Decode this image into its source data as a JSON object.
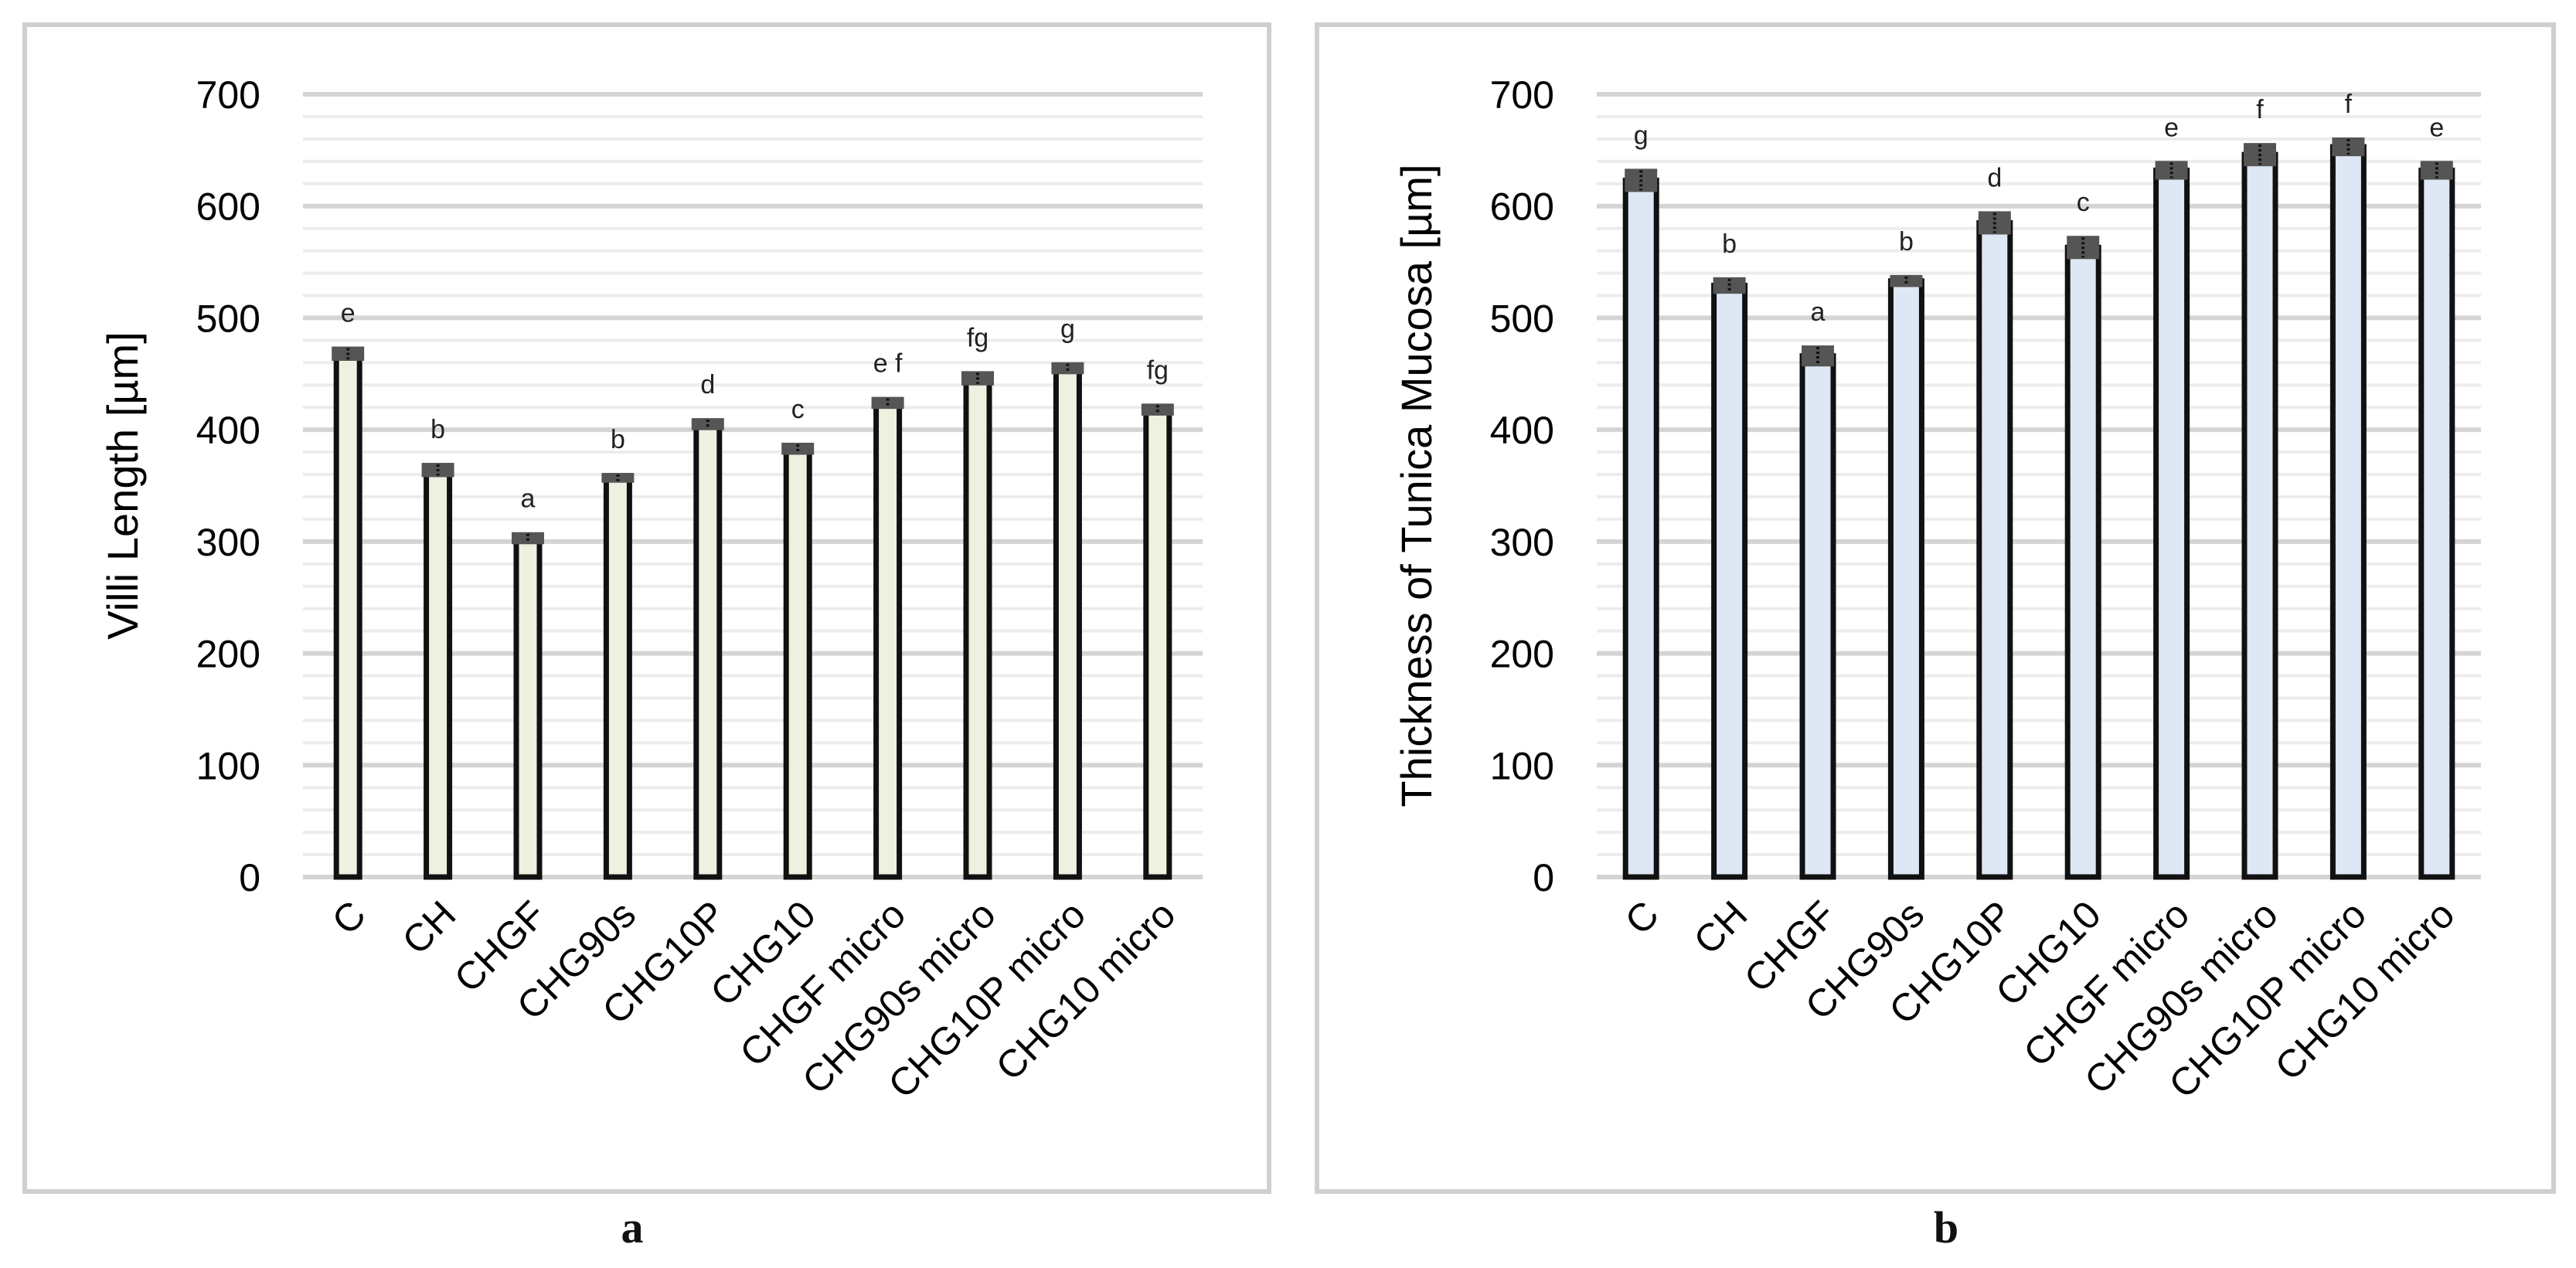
{
  "figure": {
    "panels": [
      {
        "caption": "a"
      },
      {
        "caption": "b"
      }
    ]
  },
  "chart_data": [
    {
      "type": "bar",
      "title": "",
      "xlabel": "",
      "ylabel": "Villi Length [µm]",
      "ylim": [
        0,
        700
      ],
      "yticks": [
        0,
        100,
        200,
        300,
        400,
        500,
        600,
        700
      ],
      "categories": [
        "C",
        "CH",
        "CHGF",
        "CHG90s",
        "CHG10P",
        "CHG10",
        "CHGF micro",
        "CHG90s micro",
        "CHG10P micro",
        "CHG10 micro"
      ],
      "values": [
        468,
        364,
        303,
        357,
        405,
        383,
        424,
        446,
        455,
        418
      ],
      "errors": [
        5,
        5,
        4,
        3,
        4,
        4,
        4,
        5,
        4,
        4
      ],
      "labels": [
        "e",
        "b",
        "a",
        "b",
        "d",
        "c",
        "e f",
        "fg",
        "g",
        "fg"
      ],
      "grid": true,
      "bar_color": "#eef1e0",
      "bar_edge_color": "#111111",
      "errorbar_color": "#555555"
    },
    {
      "type": "bar",
      "title": "",
      "xlabel": "",
      "ylabel": "Thickness of Tunica Mucosa [µm]",
      "ylim": [
        0,
        700
      ],
      "yticks": [
        0,
        100,
        200,
        300,
        400,
        500,
        600,
        700
      ],
      "categories": [
        "C",
        "CH",
        "CHGF",
        "CHG90s",
        "CHG10P",
        "CHG10",
        "CHGF micro",
        "CHG90s micro",
        "CHG10P micro",
        "CHG10 micro"
      ],
      "values": [
        623,
        529,
        466,
        533,
        585,
        563,
        632,
        646,
        653,
        632
      ],
      "errors": [
        9,
        6,
        8,
        4,
        9,
        9,
        7,
        9,
        7,
        7
      ],
      "labels": [
        "g",
        "b",
        "a",
        "b",
        "d",
        "c",
        "e",
        "f",
        "f",
        "e"
      ],
      "grid": true,
      "bar_color": "#dde8f4",
      "bar_edge_color": "#111111",
      "errorbar_color": "#555555"
    }
  ]
}
